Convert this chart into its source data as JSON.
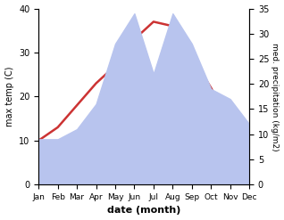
{
  "months": [
    "Jan",
    "Feb",
    "Mar",
    "Apr",
    "May",
    "Jun",
    "Jul",
    "Aug",
    "Sep",
    "Oct",
    "Nov",
    "Dec"
  ],
  "temp_max": [
    10,
    13,
    18,
    23,
    27,
    33,
    37,
    36,
    29,
    22,
    14,
    12
  ],
  "precipitation": [
    9,
    9,
    11,
    16,
    28,
    34,
    22,
    34,
    28,
    19,
    17,
    12
  ],
  "temp_color": "#cc3333",
  "precip_color_fill": "#b8c4ee",
  "temp_ylim": [
    0,
    40
  ],
  "precip_ylim": [
    0,
    35
  ],
  "temp_yticks": [
    0,
    10,
    20,
    30,
    40
  ],
  "precip_yticks": [
    0,
    5,
    10,
    15,
    20,
    25,
    30,
    35
  ],
  "xlabel": "date (month)",
  "ylabel_left": "max temp (C)",
  "ylabel_right": "med. precipitation (kg/m2)",
  "background_color": "#ffffff"
}
